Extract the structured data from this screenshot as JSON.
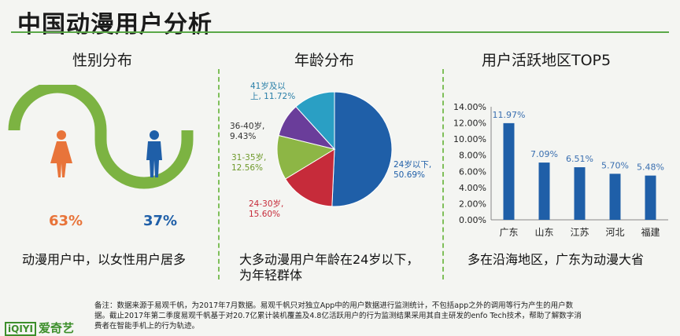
{
  "title": "中国动漫用户分析",
  "gender": {
    "heading": "性别分布",
    "female_pct": "63%",
    "male_pct": "37%",
    "female_share": 0.63,
    "male_share": 0.37,
    "caption": "动漫用户中，以女性用户居多",
    "female_color": "#e8743a",
    "male_color": "#1f5fa8",
    "wave_color": "#7cb342"
  },
  "age": {
    "heading": "年龄分布",
    "caption_line1": "大多动漫用户年龄在24岁以下，",
    "caption_line2": "为年轻群体",
    "slice_labels": [
      {
        "name": "24岁以下,",
        "value": "50.69%"
      },
      {
        "name": "24-30岁,",
        "value": "15.60%"
      },
      {
        "name": "31-35岁,",
        "value": "12.56%"
      },
      {
        "name": "36-40岁,",
        "value": "9.43%"
      },
      {
        "name": "41岁及以",
        "value": "上, 11.72%"
      }
    ]
  },
  "region": {
    "heading": "用户活跃地区TOP5",
    "caption": "多在沿海地区，广东为动漫大省"
  },
  "footnote": {
    "line1": "备注：数据来源于易观千帆，为2017年7月数据。易观千帆只对独立App中的用户数据进行监测统计，不包括app之外的调用等行为产生的用户数",
    "line2": "据。截止2017年第二季度易观千帆基于对20.7亿累计装机覆盖及4.8亿活跃用户的行为监测结果采用其自主研发的enfo Tech技术，帮助了解数字消",
    "line3": "费者在智能手机上的行为轨迹。"
  },
  "logo": "爱奇艺",
  "chart_data": [
    {
      "type": "pie",
      "title": "年龄分布",
      "categories": [
        "24岁以下",
        "24-30岁",
        "31-35岁",
        "36-40岁",
        "41岁及以上"
      ],
      "values": [
        50.69,
        15.6,
        12.56,
        9.43,
        11.72
      ],
      "colors": [
        "#1f5fa8",
        "#c62b3a",
        "#8db645",
        "#6a3d9a",
        "#2a9fc4"
      ]
    },
    {
      "type": "bar",
      "title": "用户活跃地区TOP5",
      "categories": [
        "广东",
        "山东",
        "江苏",
        "河北",
        "福建"
      ],
      "values": [
        11.97,
        7.09,
        6.51,
        5.7,
        5.48
      ],
      "value_labels": [
        "11.97%",
        "7.09%",
        "6.51%",
        "5.70%",
        "5.48%"
      ],
      "ylim": [
        0,
        14
      ],
      "yticks": [
        "0.00%",
        "2.00%",
        "4.00%",
        "6.00%",
        "8.00%",
        "10.00%",
        "12.00%",
        "14.00%"
      ],
      "bar_color": "#1f5fa8",
      "grid": false
    }
  ]
}
